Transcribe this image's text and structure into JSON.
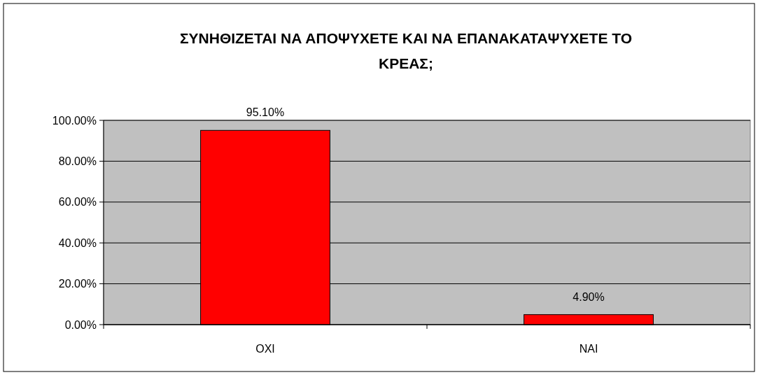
{
  "chart_data": {
    "type": "bar",
    "title": "ΣΥΝΗΘΙΖΕΤΑΙ ΝΑ ΑΠΟΨΥΧΕΤΕ ΚΑΙ ΝΑ ΕΠΑΝΑΚΑΤΑΨΥΧΕΤΕ ΤΟ ΚΡΕΑΣ;",
    "categories": [
      "ΟΧΙ",
      "ΝΑΙ"
    ],
    "values": [
      95.1,
      4.9
    ],
    "value_labels": [
      "95.10%",
      "4.90%"
    ],
    "color": "#ff0000",
    "ylim": [
      0,
      100
    ],
    "yticks": [
      {
        "value": 0,
        "label": "0.00%"
      },
      {
        "value": 20,
        "label": "20.00%"
      },
      {
        "value": 40,
        "label": "40.00%"
      },
      {
        "value": 60,
        "label": "60.00%"
      },
      {
        "value": 80,
        "label": "80.00%"
      },
      {
        "value": 100,
        "label": "100.00%"
      }
    ],
    "grid": "y"
  }
}
